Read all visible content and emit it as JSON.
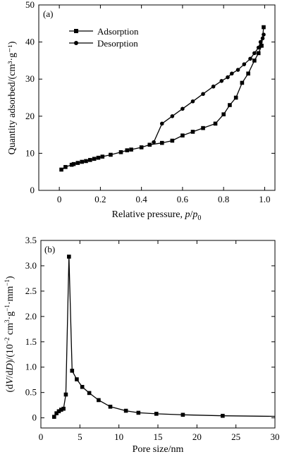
{
  "chart_data": [
    {
      "type": "line",
      "panel_label": "(a)",
      "xlabel": "Relative pressure, p/p0",
      "ylabel": "Quantity adsorbed/(cm³·g⁻¹)",
      "xlim": [
        -0.1,
        1.05
      ],
      "ylim": [
        0,
        50
      ],
      "xticks": [
        0,
        0.2,
        0.4,
        0.6,
        0.8,
        1.0
      ],
      "xtick_labels": [
        "0",
        "0.2",
        "0.4",
        "0.6",
        "0.8",
        "1.0"
      ],
      "yticks": [
        0,
        10,
        20,
        30,
        40,
        50
      ],
      "ytick_labels": [
        "0",
        "10",
        "20",
        "30",
        "40",
        "50"
      ],
      "grid": false,
      "legend": "top-left",
      "series": [
        {
          "name": "Adsorption",
          "marker": "square",
          "x": [
            0.01,
            0.03,
            0.06,
            0.07,
            0.09,
            0.11,
            0.13,
            0.15,
            0.17,
            0.19,
            0.21,
            0.25,
            0.3,
            0.33,
            0.35,
            0.4,
            0.44,
            0.5,
            0.55,
            0.6,
            0.65,
            0.7,
            0.76,
            0.8,
            0.83,
            0.86,
            0.89,
            0.92,
            0.95,
            0.97,
            0.985,
            0.995
          ],
          "y": [
            5.6,
            6.3,
            6.9,
            7.1,
            7.4,
            7.7,
            7.9,
            8.2,
            8.5,
            8.8,
            9.1,
            9.6,
            10.3,
            10.8,
            11.0,
            11.6,
            12.3,
            12.8,
            13.4,
            14.8,
            15.8,
            16.8,
            18.0,
            20.5,
            23.0,
            25.0,
            29.0,
            31.5,
            35.0,
            37.0,
            39.0,
            44.0
          ]
        },
        {
          "name": "Desorption",
          "marker": "circle",
          "x": [
            0.995,
            0.99,
            0.98,
            0.97,
            0.95,
            0.93,
            0.9,
            0.87,
            0.84,
            0.82,
            0.79,
            0.75,
            0.7,
            0.65,
            0.6,
            0.55,
            0.5,
            0.46
          ],
          "y": [
            42.0,
            41.0,
            40.0,
            38.5,
            37.0,
            35.5,
            34.0,
            32.5,
            31.5,
            30.5,
            29.5,
            28.0,
            26.0,
            24.0,
            22.0,
            20.0,
            18.0,
            13.0
          ]
        }
      ]
    },
    {
      "type": "line",
      "panel_label": "(b)",
      "xlabel": "Pore size/nm",
      "ylabel": "(dV/dD)/(10⁻² cm³·g⁻¹·mm⁻¹)",
      "xlim": [
        0,
        30
      ],
      "ylim": [
        -0.2,
        3.5
      ],
      "xticks": [
        0,
        5,
        10,
        15,
        20,
        25,
        30
      ],
      "xtick_labels": [
        "0",
        "5",
        "10",
        "15",
        "20",
        "25",
        "30"
      ],
      "yticks": [
        0,
        0.5,
        1.0,
        1.5,
        2.0,
        2.5,
        3.0,
        3.5
      ],
      "ytick_labels": [
        "0",
        "0.5",
        "1.0",
        "1.5",
        "2.0",
        "2.5",
        "3.0",
        "3.5"
      ],
      "grid": false,
      "series": [
        {
          "marker": "square",
          "x": [
            1.7,
            2.0,
            2.3,
            2.6,
            2.9,
            3.2,
            3.6,
            4.0,
            4.6,
            5.3,
            6.2,
            7.4,
            8.9,
            10.9,
            12.5,
            14.8,
            18.2,
            23.3,
            30
          ],
          "y": [
            0.02,
            0.09,
            0.13,
            0.16,
            0.18,
            0.46,
            3.18,
            0.93,
            0.76,
            0.61,
            0.49,
            0.35,
            0.22,
            0.14,
            0.1,
            0.08,
            0.06,
            0.04,
            0.03
          ],
          "marker_hidden_after_index": 17
        }
      ]
    }
  ]
}
